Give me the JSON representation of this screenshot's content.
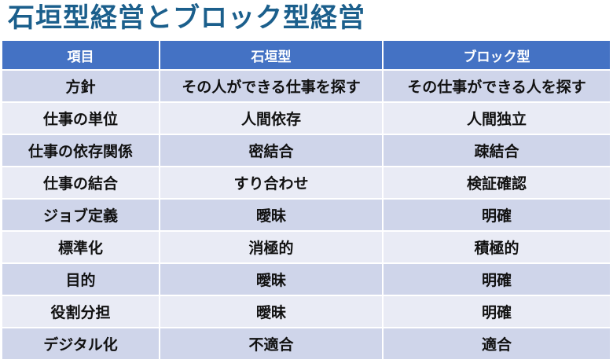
{
  "title": "石垣型経営とブロック型経営",
  "table": {
    "headers": [
      "項目",
      "石垣型",
      "ブロック型"
    ],
    "rows": [
      [
        "方針",
        "その人ができる仕事を探す",
        "その仕事ができる人を探す"
      ],
      [
        "仕事の単位",
        "人間依存",
        "人間独立"
      ],
      [
        "仕事の依存関係",
        "密結合",
        "疎結合"
      ],
      [
        "仕事の結合",
        "すり合わせ",
        "検証確認"
      ],
      [
        "ジョブ定義",
        "曖昧",
        "明確"
      ],
      [
        "標準化",
        "消極的",
        "積極的"
      ],
      [
        "目的",
        "曖昧",
        "明確"
      ],
      [
        "役割分担",
        "曖昧",
        "明確"
      ],
      [
        "デジタル化",
        "不適合",
        "適合"
      ]
    ]
  },
  "colors": {
    "title": "#1b5f8c",
    "header_bg": "#4472c4",
    "row_dark": "#cfd5ea",
    "row_light": "#e9ebf5"
  }
}
